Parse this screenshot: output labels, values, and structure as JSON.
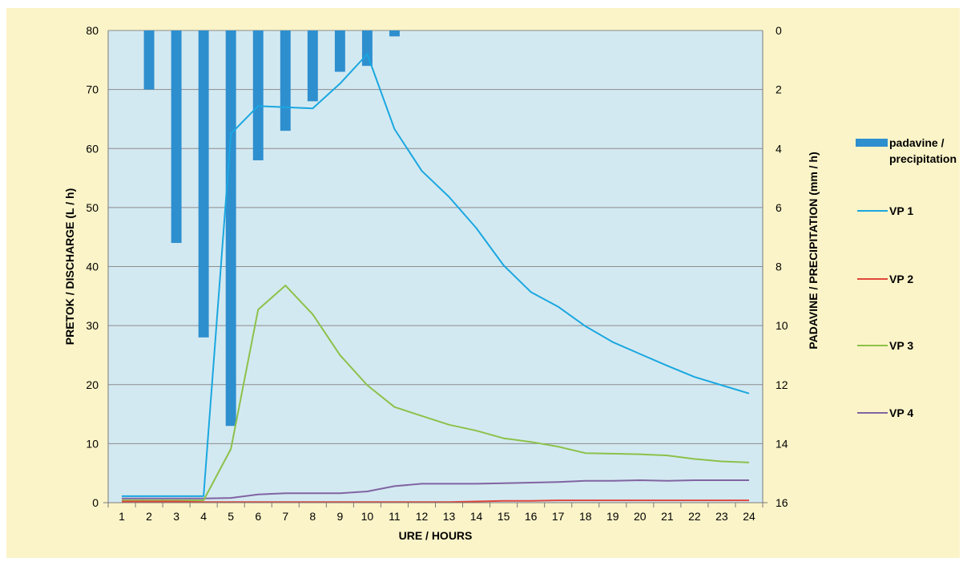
{
  "chart_data": {
    "type": "bar+line",
    "xlabel": "URE / HOURS",
    "ylabel_left": "PRETOK / DISCHARGE    (L / h)",
    "ylabel_right": "PADAVINE / PRECIPITATION    (mm / h)",
    "x": [
      1,
      2,
      3,
      4,
      5,
      6,
      7,
      8,
      9,
      10,
      11,
      12,
      13,
      14,
      15,
      16,
      17,
      18,
      19,
      20,
      21,
      22,
      23,
      24
    ],
    "ylim_left": [
      0,
      80
    ],
    "yticks_left": [
      0,
      10,
      20,
      30,
      40,
      50,
      60,
      70,
      80
    ],
    "ylim_right": [
      0,
      16
    ],
    "yticks_right": [
      0,
      2,
      4,
      6,
      8,
      10,
      12,
      14,
      16
    ],
    "right_axis_reversed": true,
    "grid": true,
    "legend_position": "right",
    "colors": {
      "plot_background": "#d3e9f1",
      "frame_background": "#fbf4c8",
      "gridline": "#8c8c8c",
      "precipitation": "#2e8fcf",
      "VP 1": "#1aa7e0",
      "VP 2": "#e0473c",
      "VP 3": "#8cc14a",
      "VP 4": "#8064a2"
    },
    "bars": {
      "name": "padavine / precipitation",
      "legend_lines": [
        "padavine /",
        "precipitation"
      ],
      "axis": "right",
      "values": [
        0,
        2,
        7.2,
        10.4,
        13.4,
        4.4,
        3.4,
        2.4,
        1.4,
        1.2,
        0.2,
        0,
        0,
        0,
        0,
        0,
        0,
        0,
        0,
        0,
        0,
        0,
        0,
        0
      ]
    },
    "series": [
      {
        "name": "VP 1",
        "values": [
          1.1,
          1.1,
          1.1,
          1.1,
          62.5,
          67.2,
          67.0,
          66.8,
          71.0,
          76.0,
          63.3,
          56.2,
          51.8,
          46.5,
          40.2,
          35.7,
          33.2,
          29.9,
          27.2,
          25.2,
          23.2,
          21.3,
          19.9,
          18.5
        ]
      },
      {
        "name": "VP 2",
        "values": [
          0.2,
          0.2,
          0.2,
          0.1,
          0.1,
          0.1,
          0.1,
          0.1,
          0.1,
          0.1,
          0.1,
          0.1,
          0.1,
          0.2,
          0.3,
          0.3,
          0.4,
          0.4,
          0.4,
          0.4,
          0.4,
          0.4,
          0.4,
          0.4
        ]
      },
      {
        "name": "VP 3",
        "values": [
          0.4,
          0.4,
          0.4,
          0.4,
          9.1,
          32.7,
          36.8,
          31.9,
          25.0,
          19.9,
          16.2,
          14.7,
          13.2,
          12.2,
          10.9,
          10.3,
          9.5,
          8.4,
          8.3,
          8.2,
          8.0,
          7.4,
          7.0,
          6.8
        ]
      },
      {
        "name": "VP 4",
        "values": [
          0.7,
          0.7,
          0.7,
          0.7,
          0.8,
          1.4,
          1.6,
          1.6,
          1.6,
          1.9,
          2.8,
          3.2,
          3.2,
          3.2,
          3.3,
          3.4,
          3.5,
          3.7,
          3.7,
          3.8,
          3.7,
          3.8,
          3.8,
          3.8
        ]
      }
    ]
  }
}
